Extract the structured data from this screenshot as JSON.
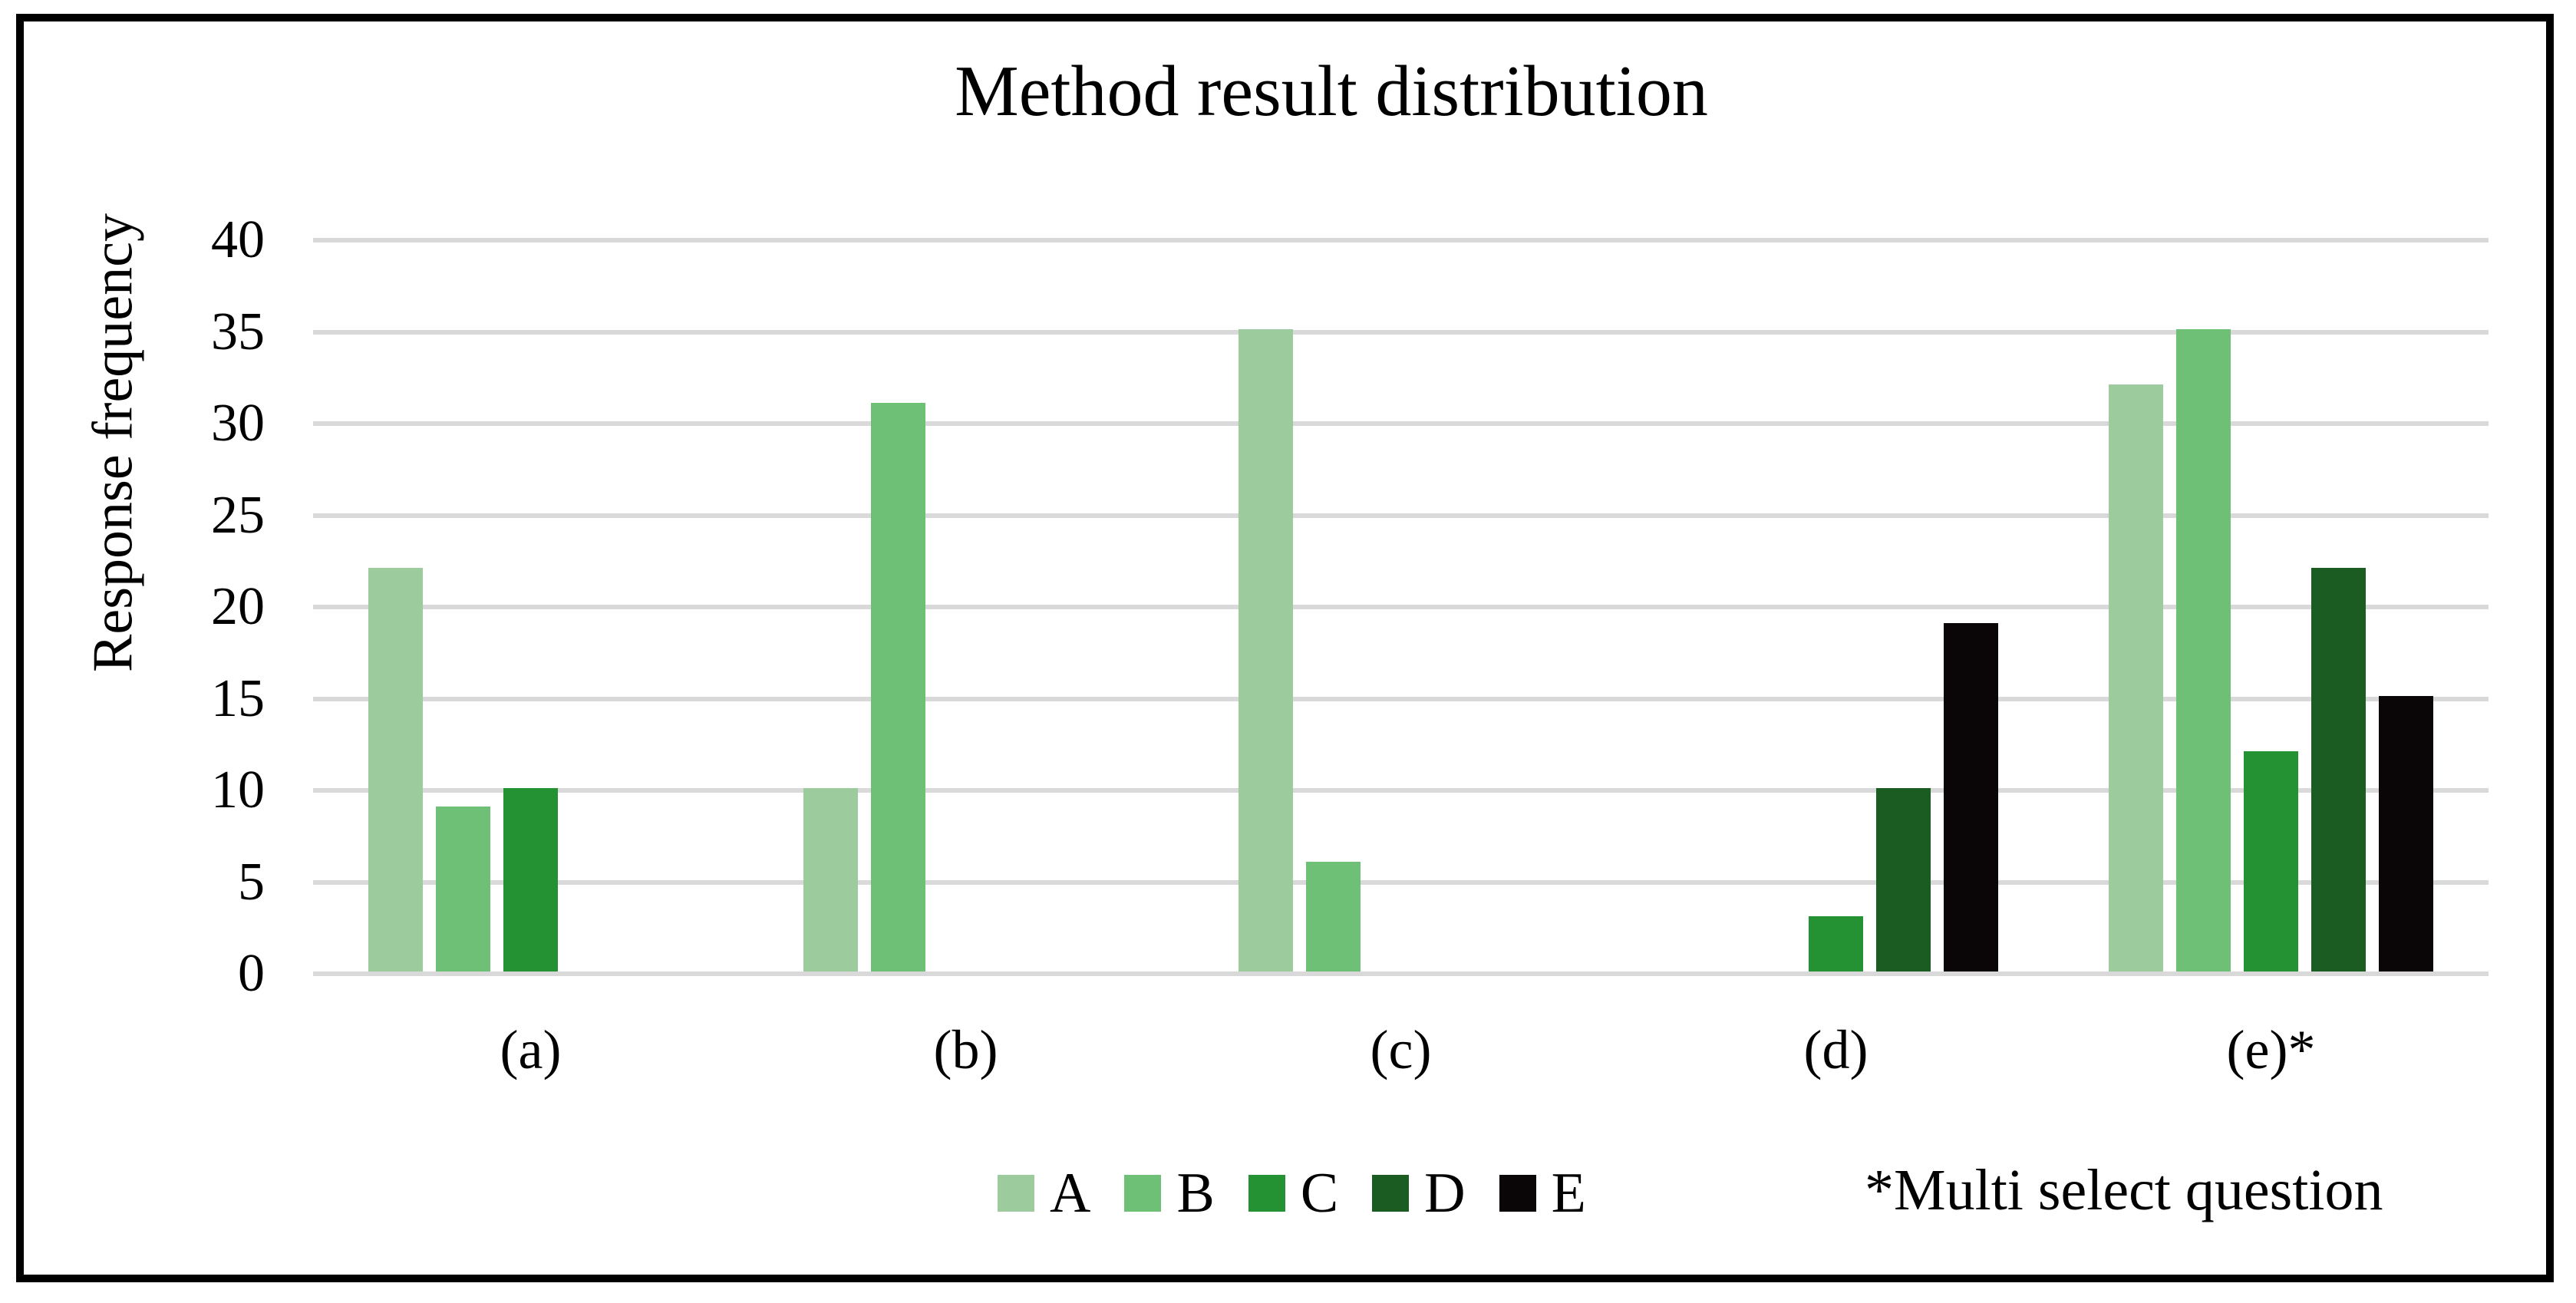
{
  "chart_data": {
    "type": "bar",
    "title": "Method result distribution",
    "xlabel": "",
    "ylabel": "Response frequency",
    "ylim": [
      0,
      40
    ],
    "ytick_interval": 5,
    "yticks": [
      0,
      5,
      10,
      15,
      20,
      25,
      30,
      35,
      40
    ],
    "grid": true,
    "gridline_color": "#D9D9D9",
    "background_color": "#FFFFFF",
    "frame_color": "#000000",
    "legend_position": "bottom",
    "categories": [
      "(a)",
      "(b)",
      "(c)",
      "(d)",
      "(e)*"
    ],
    "series": [
      {
        "name": "A",
        "color": "#9CCC9E",
        "values": [
          22,
          10,
          35,
          0,
          32
        ]
      },
      {
        "name": "B",
        "color": "#6FC077",
        "values": [
          9,
          31,
          6,
          0,
          35
        ]
      },
      {
        "name": "C",
        "color": "#249232",
        "values": [
          10,
          0,
          0,
          3,
          12
        ]
      },
      {
        "name": "D",
        "color": "#1A5C21",
        "values": [
          0,
          0,
          0,
          10,
          22
        ]
      },
      {
        "name": "E",
        "color": "#0A0608",
        "values": [
          0,
          0,
          0,
          19,
          15
        ]
      }
    ],
    "footnote": "*Multi select question"
  }
}
